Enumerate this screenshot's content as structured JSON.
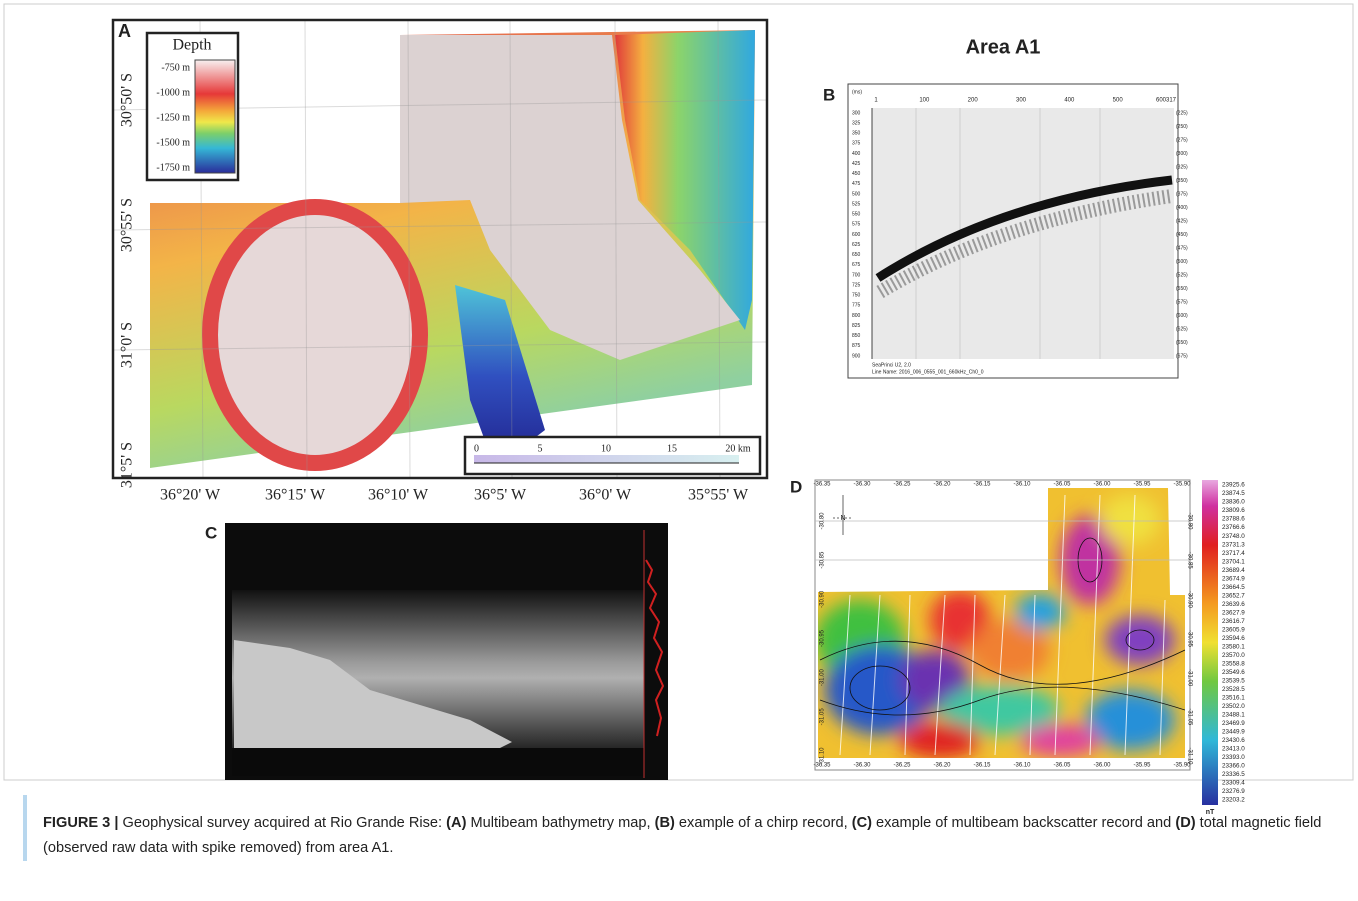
{
  "panel_a": {
    "label": "A",
    "legend_title": "Depth",
    "legend_labels": [
      "-750 m",
      "-1000 m",
      "-1250 m",
      "-1500 m",
      "-1750 m"
    ],
    "lat_labels": [
      "30°50' S",
      "30°55' S",
      "31°0' S",
      "31°5' S"
    ],
    "lon_labels": [
      "36°20' W",
      "36°15' W",
      "36°10' W",
      "36°5' W",
      "36°0' W",
      "35°55' W"
    ],
    "scale_labels": [
      "0",
      "5",
      "10",
      "15",
      "20 km"
    ]
  },
  "panel_b": {
    "title": "Area A1",
    "label": "B",
    "corner_left": "(ms)",
    "top_labels": [
      "1",
      "100",
      "200",
      "300",
      "400",
      "500",
      "600317"
    ],
    "left_labels": [
      "300",
      "325",
      "350",
      "375",
      "400",
      "425",
      "450",
      "475",
      "500",
      "525",
      "550",
      "575",
      "600",
      "625",
      "650",
      "675",
      "700",
      "725",
      "750",
      "775",
      "800",
      "825",
      "850",
      "875",
      "900"
    ],
    "right_labels": [
      "(225)",
      "(250)",
      "(275)",
      "(300)",
      "(325)",
      "(350)",
      "(375)",
      "(400)",
      "(425)",
      "(450)",
      "(475)",
      "(500)",
      "(525)",
      "(550)",
      "(575)",
      "(600)",
      "(625)",
      "(650)",
      "(675)"
    ],
    "footer": [
      "SeaPrinci U2, 2.0",
      "Line Name: 2016_006_0555_001_660kHz_Ch0_0"
    ]
  },
  "panel_c": {
    "label": "C"
  },
  "panel_d": {
    "label": "D",
    "north": "N",
    "x_labels": [
      "-36.35",
      "-36.30",
      "-36.25",
      "-36.20",
      "-36.15",
      "-36.10",
      "-36.05",
      "-36.00",
      "-35.95",
      "-35.90"
    ],
    "y_labels": [
      "-30.80",
      "-30.85",
      "-30.90",
      "-30.95",
      "-31.00",
      "-31.05",
      "-31.10"
    ],
    "colorbar_labels": [
      "23925.6",
      "23874.5",
      "23836.0",
      "23809.6",
      "23788.6",
      "23766.6",
      "23748.0",
      "23731.3",
      "23717.4",
      "23704.1",
      "23689.4",
      "23674.9",
      "23664.5",
      "23652.7",
      "23639.6",
      "23627.9",
      "23616.7",
      "23605.9",
      "23594.6",
      "23580.1",
      "23570.0",
      "23558.8",
      "23549.6",
      "23539.5",
      "23528.5",
      "23516.1",
      "23502.0",
      "23488.1",
      "23469.9",
      "23449.9",
      "23430.6",
      "23413.0",
      "23393.0",
      "23366.0",
      "23336.5",
      "23309.4",
      "23276.9",
      "23203.2"
    ],
    "colorbar_unit": "nT"
  },
  "caption": {
    "parts": [
      "FIGURE 3 |",
      " Geophysical survey acquired at Rio Grande Rise: ",
      "(A)",
      " Multibeam bathymetry map, ",
      "(B)",
      " example of a chirp record, ",
      "(C)",
      " example of multibeam backscatter record and ",
      "(D)",
      " total magnetic field (observed raw data with spike removed) from area A1."
    ]
  }
}
